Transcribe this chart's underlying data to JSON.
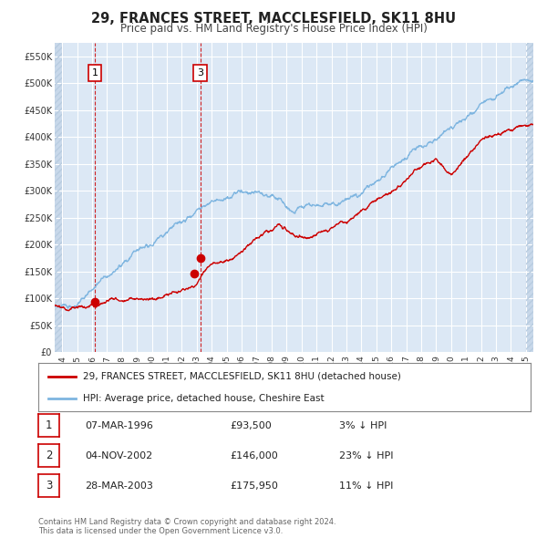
{
  "title": "29, FRANCES STREET, MACCLESFIELD, SK11 8HU",
  "subtitle": "Price paid vs. HM Land Registry's House Price Index (HPI)",
  "background_color": "#ffffff",
  "plot_bg_color": "#dce8f5",
  "grid_color": "#ffffff",
  "hatch_color": "#c8d8ea",
  "hpi_color": "#7eb5e0",
  "price_color": "#cc0000",
  "vline_color": "#cc0000",
  "xlim_min": 1993.5,
  "xlim_max": 2025.5,
  "ylim_min": 0,
  "ylim_max": 575000,
  "yticks": [
    0,
    50000,
    100000,
    150000,
    200000,
    250000,
    300000,
    350000,
    400000,
    450000,
    500000,
    550000
  ],
  "ytick_labels": [
    "£0",
    "£50K",
    "£100K",
    "£150K",
    "£200K",
    "£250K",
    "£300K",
    "£350K",
    "£400K",
    "£450K",
    "£500K",
    "£550K"
  ],
  "xticks": [
    1994,
    1995,
    1996,
    1997,
    1998,
    1999,
    2000,
    2001,
    2002,
    2003,
    2004,
    2005,
    2006,
    2007,
    2008,
    2009,
    2010,
    2011,
    2012,
    2013,
    2014,
    2015,
    2016,
    2017,
    2018,
    2019,
    2020,
    2021,
    2022,
    2023,
    2024,
    2025
  ],
  "sale_points": [
    {
      "label": "1",
      "year": 1996.18,
      "price": 93500,
      "show_vline": true
    },
    {
      "label": "2",
      "year": 2002.84,
      "price": 146000,
      "show_vline": false
    },
    {
      "label": "3",
      "year": 2003.23,
      "price": 175950,
      "show_vline": true
    }
  ],
  "legend_line1": "29, FRANCES STREET, MACCLESFIELD, SK11 8HU (detached house)",
  "legend_line2": "HPI: Average price, detached house, Cheshire East",
  "table_rows": [
    {
      "num": "1",
      "date": "07-MAR-1996",
      "price": "£93,500",
      "hpi": "3% ↓ HPI"
    },
    {
      "num": "2",
      "date": "04-NOV-2002",
      "price": "£146,000",
      "hpi": "23% ↓ HPI"
    },
    {
      "num": "3",
      "date": "28-MAR-2003",
      "price": "£175,950",
      "hpi": "11% ↓ HPI"
    }
  ],
  "footer": "Contains HM Land Registry data © Crown copyright and database right 2024.\nThis data is licensed under the Open Government Licence v3.0."
}
